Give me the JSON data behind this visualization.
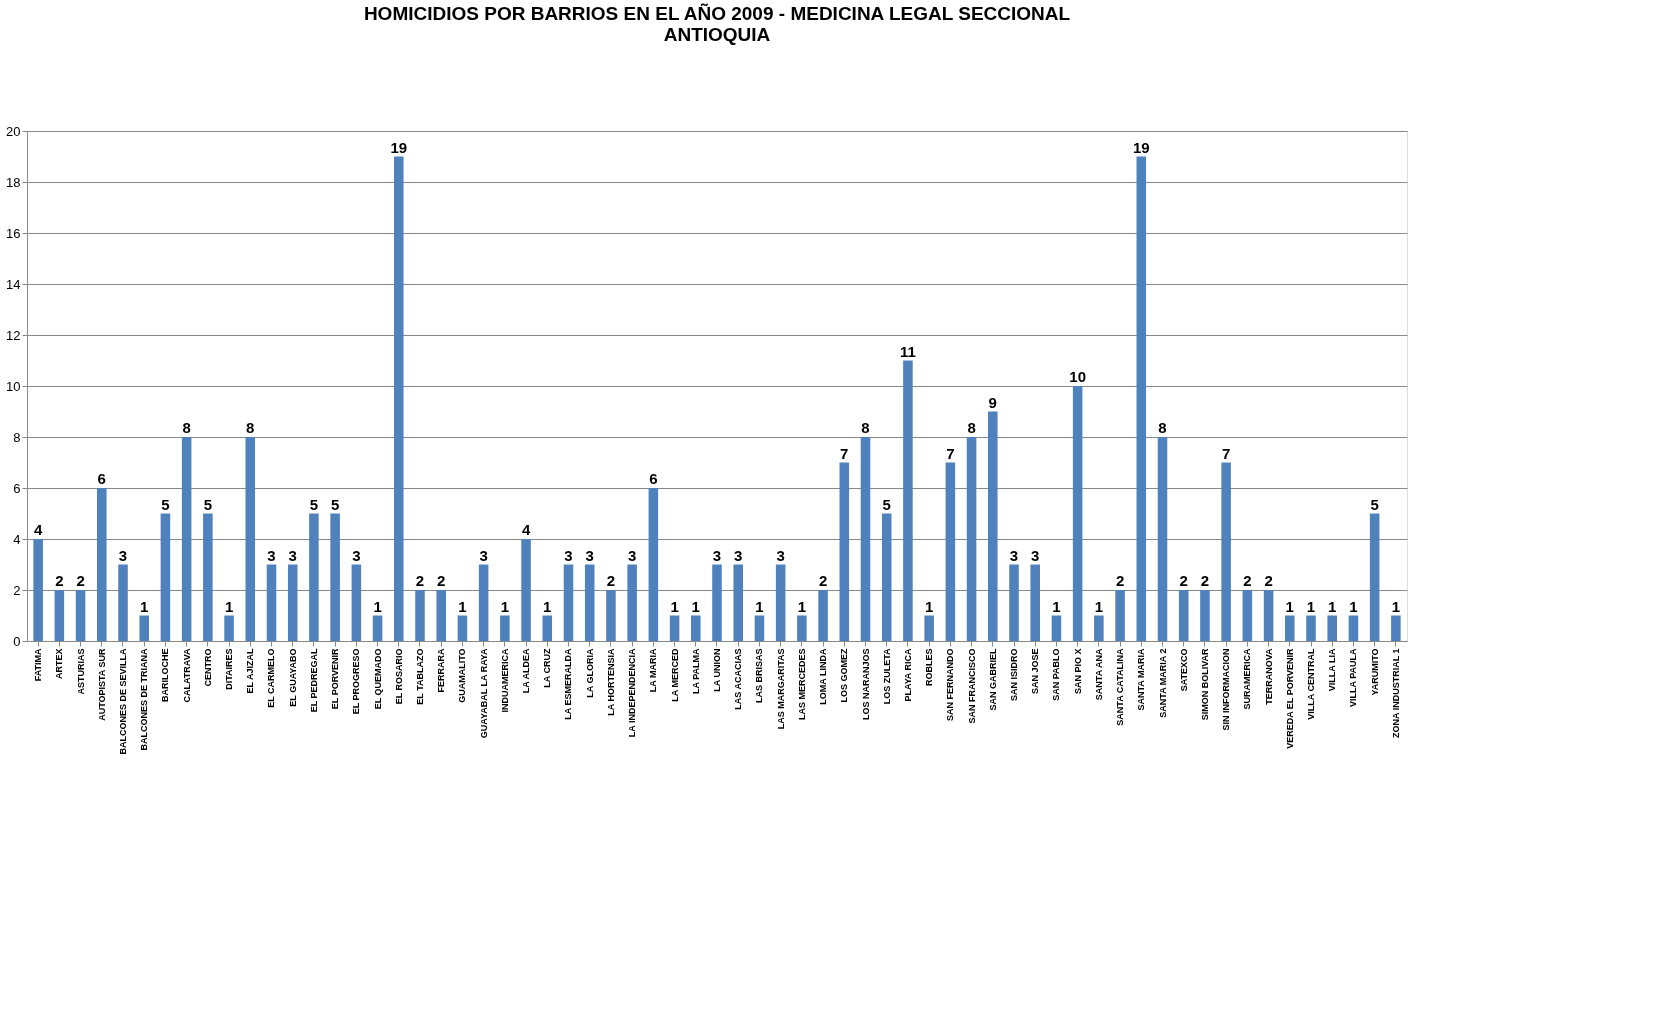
{
  "chart_data": {
    "type": "bar",
    "title": [
      "HOMICIDIOS POR BARRIOS EN EL AÑO 2009 - MEDICINA LEGAL SECCIONAL",
      "ANTIOQUIA"
    ],
    "categories": [
      "FATIMA",
      "ARTEX",
      "ASTURIAS",
      "AUTOPISTA SUR",
      "BALCONES DE SEVILLA",
      "BALCONES DE TRIANA",
      "BARILOCHE",
      "CALATRAVA",
      "CENTRO",
      "DITAIRES",
      "EL AJIZAL",
      "EL CARMELO",
      "EL GUAYABO",
      "EL PEDREGAL",
      "EL PORVENIR",
      "EL PROGRESO",
      "EL QUEMADO",
      "EL ROSARIO",
      "EL TABLAZO",
      "FERRARA",
      "GUAMALITO",
      "GUAYABAL LA RAYA",
      "INDUAMERICA",
      "LA ALDEA",
      "LA CRUZ",
      "LA ESMERALDA",
      "LA GLORIA",
      "LA HORTENSIA",
      "LA INDEPENDENCIA",
      "LA MARIA",
      "LA MERCED",
      "LA PALMA",
      "LA UNION",
      "LAS ACACIAS",
      "LAS BRISAS",
      "LAS MARGARITAS",
      "LAS MERCEDES",
      "LOMA LINDA",
      "LOS GOMEZ",
      "LOS NARANJOS",
      "LOS ZULETA",
      "PLAYA RICA",
      "ROBLES",
      "SAN FERNANDO",
      "SAN FRANCISCO",
      "SAN GABRIEL",
      "SAN ISIDRO",
      "SAN JOSE",
      "SAN PABLO",
      "SAN PIO X",
      "SANTA ANA",
      "SANTA CATALINA",
      "SANTA MARIA",
      "SANTA MARIA 2",
      "SATEXCO",
      "SIMON BOLIVAR",
      "SIN INFORMACION",
      "SURAMERICA",
      "TERRANOVA",
      "VEREDA EL PORVENIR",
      "VILLA CENTRAL",
      "VILLA LIA",
      "VILLA PAULA",
      "YARUMITO",
      "ZONA INDUSTRIAL 1"
    ],
    "values": [
      4,
      2,
      2,
      6,
      3,
      1,
      5,
      8,
      5,
      1,
      8,
      3,
      3,
      5,
      5,
      3,
      1,
      19,
      2,
      2,
      1,
      3,
      1,
      4,
      1,
      3,
      3,
      2,
      3,
      6,
      1,
      1,
      3,
      3,
      1,
      3,
      1,
      2,
      7,
      8,
      5,
      11,
      1,
      7,
      8,
      9,
      3,
      3,
      1,
      10,
      1,
      2,
      19,
      8,
      2,
      2,
      7,
      2,
      2,
      1,
      1,
      1,
      1,
      5,
      1
    ],
    "color": "#4f81bd",
    "ylim": [
      0,
      20
    ],
    "yticks": [
      0,
      2,
      4,
      6,
      8,
      10,
      12,
      14,
      16,
      18,
      20
    ],
    "grid": "y",
    "data_labels": true
  }
}
